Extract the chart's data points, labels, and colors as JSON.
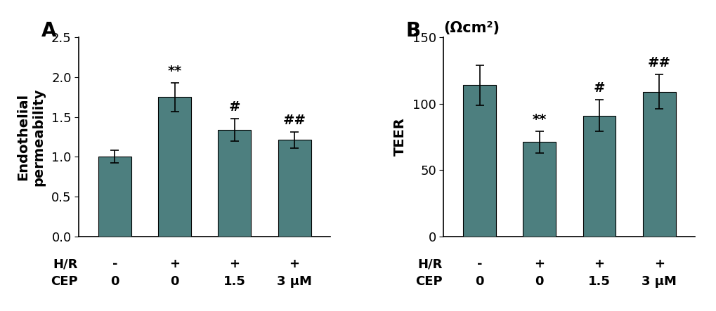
{
  "panel_A": {
    "label": "A",
    "values": [
      1.0,
      1.75,
      1.34,
      1.21
    ],
    "errors": [
      0.08,
      0.18,
      0.14,
      0.1
    ],
    "ylabel": "Endothelial\npermeability",
    "ylim": [
      0,
      2.5
    ],
    "yticks": [
      0,
      0.5,
      1.0,
      1.5,
      2.0,
      2.5
    ],
    "annotations": [
      "",
      "**",
      "#",
      "##"
    ],
    "hr_labels": [
      "-",
      "+",
      "+",
      "+"
    ],
    "cep_labels": [
      "0",
      "0",
      "1.5",
      "3 μM"
    ]
  },
  "panel_B": {
    "label": "B",
    "title": "(Ωcm²)",
    "values": [
      114,
      71,
      91,
      109
    ],
    "errors": [
      15,
      8,
      12,
      13
    ],
    "ylabel": "TEER",
    "ylim": [
      0,
      150
    ],
    "yticks": [
      0,
      50,
      100,
      150
    ],
    "annotations": [
      "",
      "**",
      "#",
      "##"
    ],
    "hr_labels": [
      "-",
      "+",
      "+",
      "+"
    ],
    "cep_labels": [
      "0",
      "0",
      "1.5",
      "3 μM"
    ]
  },
  "bar_color": "#4d7f7f",
  "bar_width": 0.55,
  "background_color": "#ffffff",
  "tick_fontsize": 13,
  "annot_fontsize": 14,
  "axis_label_fontsize": 14,
  "panel_label_fontsize": 20,
  "subtitle_fontsize": 15,
  "xlabel_hr": "H/R",
  "xlabel_cep": "CEP"
}
